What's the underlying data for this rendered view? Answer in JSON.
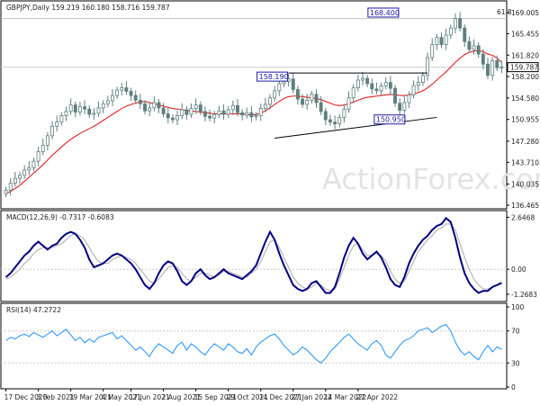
{
  "chart_data": [
    {
      "type": "candlestick",
      "panel": "price",
      "title": "GBPJPY,Daily  159.219 160.180 158.716 159.787",
      "watermark": "ActionForex.com",
      "ylim": [
        136.465,
        169.005
      ],
      "y_ticks": [
        "169.005",
        "165.455",
        "161.820",
        "158.200",
        "154.580",
        "150.955",
        "147.280",
        "143.710",
        "140.035",
        "136.465"
      ],
      "current_price": "159.787",
      "fib_label": "61.8",
      "fib_level": 168.0,
      "annotations": [
        {
          "text": "168.400",
          "x": 83,
          "y": 168.4
        },
        {
          "text": "158.190",
          "x": 61,
          "y": 158.19
        },
        {
          "text": "150.950",
          "x": 83,
          "y": 150.95
        }
      ],
      "trendlines": [
        {
          "name": "upper-line",
          "points": [
            [
              61,
              158.8
            ],
            [
              91,
              158.8
            ]
          ]
        },
        {
          "name": "lower-line",
          "points": [
            [
              58,
              147.8
            ],
            [
              93,
              151.3
            ]
          ]
        }
      ],
      "close": [
        139.0,
        140.2,
        141.0,
        141.5,
        142.4,
        142.8,
        143.9,
        145.5,
        146.6,
        148.2,
        149.8,
        150.5,
        151.6,
        152.3,
        153.4,
        152.2,
        153.1,
        152.7,
        151.8,
        152.0,
        152.9,
        153.6,
        154.1,
        155.0,
        155.9,
        156.3,
        155.7,
        155.0,
        154.2,
        153.6,
        152.4,
        152.9,
        153.8,
        152.9,
        151.9,
        151.2,
        150.9,
        151.6,
        152.6,
        151.8,
        152.8,
        153.4,
        152.3,
        151.5,
        151.2,
        151.8,
        152.4,
        151.8,
        152.6,
        153.3,
        152.1,
        151.7,
        152.1,
        151.4,
        151.6,
        152.8,
        153.5,
        154.6,
        155.8,
        157.0,
        157.4,
        157.8,
        156.0,
        154.4,
        153.5,
        154.2,
        155.2,
        153.8,
        152.3,
        150.9,
        150.5,
        150.2,
        151.3,
        152.7,
        154.6,
        156.3,
        157.6,
        157.9,
        157.0,
        156.1,
        155.8,
        156.6,
        157.2,
        156.2,
        153.7,
        152.5,
        153.8,
        155.1,
        156.7,
        157.2,
        158.4,
        161.4,
        163.6,
        164.8,
        163.6,
        165.2,
        166.4,
        168.0,
        166.4,
        164.1,
        162.8,
        163.4,
        162.0,
        160.3,
        158.4,
        160.9,
        159.7,
        159.8
      ],
      "ma": [
        138.4,
        138.8,
        139.3,
        139.8,
        140.5,
        141.2,
        141.9,
        142.6,
        143.3,
        144.1,
        144.9,
        145.6,
        146.3,
        147.0,
        147.6,
        148.1,
        148.6,
        149.0,
        149.4,
        149.8,
        150.3,
        150.8,
        151.3,
        151.8,
        152.3,
        152.8,
        153.2,
        153.5,
        153.7,
        153.9,
        154.0,
        153.8,
        153.6,
        153.4,
        153.2,
        153.0,
        152.8,
        152.7,
        152.6,
        152.5,
        152.4,
        152.3,
        152.2,
        152.1,
        152.0,
        151.9,
        151.9,
        151.9,
        151.9,
        151.9,
        151.9,
        151.9,
        151.8,
        151.7,
        151.8,
        152.0,
        152.4,
        152.9,
        153.5,
        154.0,
        154.5,
        154.8,
        154.9,
        154.9,
        154.8,
        154.7,
        154.6,
        154.5,
        154.3,
        154.0,
        153.7,
        153.4,
        153.3,
        153.4,
        153.6,
        153.9,
        154.2,
        154.5,
        154.7,
        154.8,
        154.9,
        155.0,
        155.1,
        155.2,
        155.1,
        155.0,
        155.0,
        155.1,
        155.3,
        155.5,
        155.8,
        156.3,
        156.9,
        157.6,
        158.3,
        159.0,
        159.8,
        160.6,
        161.3,
        161.9,
        162.3,
        162.5,
        162.6,
        162.4,
        162.0,
        161.8,
        161.3,
        160.6
      ]
    },
    {
      "type": "line",
      "panel": "macd",
      "title": "MACD(12,26,9) -0.7317 -0.6083",
      "ylim": [
        -1.5,
        2.8
      ],
      "y_ticks": [
        {
          "label": "2.6468",
          "v": 2.6468
        },
        {
          "label": "0.00",
          "v": 0.0
        },
        {
          "label": "-1.2683",
          "v": -1.2683
        }
      ],
      "series": [
        {
          "name": "macd-line",
          "color": "#000080",
          "values": [
            -0.4,
            -0.2,
            0.1,
            0.4,
            0.7,
            0.9,
            1.2,
            1.4,
            1.2,
            1.0,
            1.2,
            1.3,
            1.6,
            1.8,
            1.9,
            1.8,
            1.5,
            1.1,
            0.5,
            0.1,
            0.2,
            0.3,
            0.5,
            0.7,
            0.8,
            0.7,
            0.5,
            0.3,
            0.0,
            -0.4,
            -0.8,
            -1.0,
            -0.7,
            -0.2,
            0.2,
            0.4,
            0.3,
            -0.1,
            -0.6,
            -0.8,
            -0.6,
            -0.2,
            0.0,
            -0.3,
            -0.5,
            -0.4,
            -0.2,
            0.0,
            -0.2,
            -0.3,
            -0.4,
            -0.5,
            -0.3,
            -0.1,
            0.2,
            0.8,
            1.4,
            1.9,
            1.5,
            0.8,
            0.2,
            -0.3,
            -0.8,
            -1.0,
            -1.1,
            -1.0,
            -0.7,
            -0.6,
            -0.9,
            -1.2,
            -1.2,
            -0.9,
            -0.2,
            0.6,
            1.2,
            1.6,
            1.3,
            0.8,
            0.5,
            0.7,
            0.9,
            0.6,
            0.1,
            -0.5,
            -0.8,
            -0.9,
            -0.4,
            0.3,
            0.8,
            1.2,
            1.5,
            1.7,
            2.0,
            2.2,
            2.3,
            2.6,
            2.4,
            1.6,
            0.6,
            -0.2,
            -0.7,
            -1.0,
            -1.2,
            -1.1,
            -1.1,
            -0.9,
            -0.8,
            -0.7
          ]
        },
        {
          "name": "signal-line",
          "color": "#aaaaaa",
          "values": [
            -0.5,
            -0.4,
            -0.2,
            0.0,
            0.3,
            0.5,
            0.8,
            1.0,
            1.1,
            1.1,
            1.1,
            1.2,
            1.3,
            1.5,
            1.7,
            1.8,
            1.7,
            1.5,
            1.1,
            0.7,
            0.4,
            0.3,
            0.3,
            0.5,
            0.6,
            0.7,
            0.6,
            0.5,
            0.3,
            0.0,
            -0.3,
            -0.6,
            -0.7,
            -0.5,
            -0.2,
            0.1,
            0.2,
            0.1,
            -0.2,
            -0.5,
            -0.6,
            -0.4,
            -0.2,
            -0.2,
            -0.3,
            -0.4,
            -0.3,
            -0.1,
            -0.1,
            -0.2,
            -0.3,
            -0.4,
            -0.4,
            -0.2,
            0.0,
            0.4,
            0.9,
            1.4,
            1.5,
            1.1,
            0.6,
            0.1,
            -0.4,
            -0.7,
            -0.9,
            -1.0,
            -0.9,
            -0.7,
            -0.8,
            -1.0,
            -1.1,
            -1.0,
            -0.5,
            0.1,
            0.7,
            1.2,
            1.3,
            1.0,
            0.7,
            0.7,
            0.8,
            0.7,
            0.4,
            -0.1,
            -0.5,
            -0.7,
            -0.6,
            -0.1,
            0.4,
            0.9,
            1.2,
            1.5,
            1.7,
            2.0,
            2.1,
            2.3,
            2.3,
            2.0,
            1.3,
            0.6,
            0.0,
            -0.5,
            -0.8,
            -1.0,
            -1.0,
            -0.9,
            -0.8,
            -0.6
          ]
        }
      ]
    },
    {
      "type": "line",
      "panel": "rsi",
      "title": "RSI(14) 47.2722",
      "ylim": [
        0,
        100
      ],
      "y_ticks": [
        {
          "label": "100",
          "v": 100
        },
        {
          "label": "70",
          "v": 70
        },
        {
          "label": "30",
          "v": 30
        },
        {
          "label": "0",
          "v": 0
        }
      ],
      "series": [
        {
          "name": "rsi-line",
          "color": "#1e90ff",
          "values": [
            58,
            62,
            60,
            64,
            66,
            63,
            68,
            65,
            62,
            66,
            70,
            64,
            68,
            72,
            65,
            58,
            62,
            55,
            60,
            56,
            62,
            64,
            66,
            68,
            60,
            64,
            58,
            52,
            46,
            50,
            44,
            38,
            48,
            54,
            50,
            46,
            42,
            52,
            56,
            46,
            54,
            50,
            44,
            40,
            48,
            54,
            50,
            46,
            54,
            50,
            44,
            42,
            48,
            40,
            50,
            56,
            60,
            64,
            66,
            60,
            52,
            46,
            40,
            44,
            50,
            46,
            40,
            34,
            30,
            36,
            44,
            50,
            56,
            62,
            66,
            60,
            54,
            50,
            46,
            54,
            58,
            52,
            40,
            36,
            44,
            52,
            58,
            60,
            64,
            70,
            72,
            74,
            68,
            72,
            76,
            78,
            70,
            56,
            46,
            40,
            44,
            38,
            34,
            44,
            52,
            44,
            50,
            47
          ]
        }
      ]
    }
  ],
  "x_ticks": [
    {
      "label": "17 Dec 2020",
      "i": 0
    },
    {
      "label": "3 Feb 2021",
      "i": 7
    },
    {
      "label": "19 Mar 2021",
      "i": 14
    },
    {
      "label": "4 May 2021",
      "i": 21
    },
    {
      "label": "17 Jun 2021",
      "i": 27
    },
    {
      "label": "2 Aug 2021",
      "i": 34
    },
    {
      "label": "15 Sep 2021",
      "i": 41
    },
    {
      "label": "29 Oct 2021",
      "i": 48
    },
    {
      "label": "14 Dec 2021",
      "i": 55
    },
    {
      "label": "27 Jan 2022",
      "i": 62
    },
    {
      "label": "14 Mar 2022",
      "i": 69
    },
    {
      "label": "27 Apr 2022",
      "i": 76
    }
  ],
  "colors": {
    "bull": "#ffffff",
    "bear": "#5f7f7f",
    "wick": "#5f7f7f",
    "ma": "#e02020",
    "annotation_border": "#1a1aa0",
    "annotation_text": "#1a1aa0",
    "price_tag_bg": "#ffffff",
    "grid_fib": "#c0c0c0"
  }
}
